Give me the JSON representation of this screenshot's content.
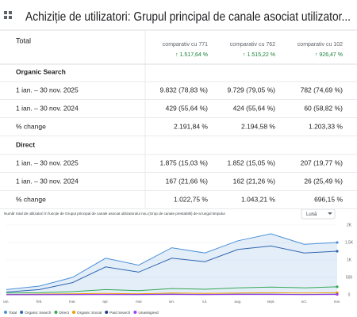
{
  "header": {
    "title": "Achiziție de utilizatori: Grupul principal de canale asociat utilizator..."
  },
  "table": {
    "header_label": "Total",
    "columns": [
      {
        "label": "comparativ cu 771",
        "change": "↑ 1.517,64 %"
      },
      {
        "label": "comparativ cu 762",
        "change": "↑ 1.515,22 %"
      },
      {
        "label": "comparativ cu 102",
        "change": "↑ 926,47 %"
      }
    ],
    "sections": [
      {
        "name": "Organic Search",
        "rows": [
          {
            "label": "1 ian. – 30 nov. 2025",
            "cells": [
              "9.832 (78,83 %)",
              "9.729 (79,05 %)",
              "782 (74,69 %)"
            ]
          },
          {
            "label": "1 ian. – 30 nov. 2024",
            "cells": [
              "429 (55,64 %)",
              "424 (55,64 %)",
              "60 (58,82 %)"
            ]
          },
          {
            "label": "% change",
            "cells": [
              "2.191,84 %",
              "2.194,58 %",
              "1.203,33 %"
            ]
          }
        ]
      },
      {
        "name": "Direct",
        "rows": [
          {
            "label": "1 ian. – 30 nov. 2025",
            "cells": [
              "1.875 (15,03 %)",
              "1.852 (15,05 %)",
              "207 (19,77 %)"
            ]
          },
          {
            "label": "1 ian. – 30 nov. 2024",
            "cells": [
              "167 (21,66 %)",
              "162 (21,26 %)",
              "26 (25,49 %)"
            ]
          },
          {
            "label": "% change",
            "cells": [
              "1.022,75 %",
              "1.043,21 %",
              "696,15 %"
            ]
          }
        ]
      }
    ]
  },
  "chart_data": {
    "type": "line",
    "title": "Număr total de utilizatori în funcție de Grupul principal de canale asociat utilizatorului nou (Grup de canale prestabilit) de-a lungul timpului",
    "granularity": "Lună",
    "categories": [
      "ian.",
      "feb.",
      "mar.",
      "apr.",
      "mai",
      "iun.",
      "iul.",
      "aug.",
      "sept.",
      "oct.",
      "nov."
    ],
    "ylim": [
      0,
      2000
    ],
    "yticks": [
      0,
      500,
      {
        "value": 1000,
        "label": "1K"
      },
      {
        "value": 1500,
        "label": "1,5K"
      },
      {
        "value": 2000,
        "label": "2K"
      }
    ],
    "grid": true,
    "series": [
      {
        "name": "Total",
        "color": "#4a90d9",
        "area": true,
        "values": [
          150,
          250,
          500,
          1050,
          850,
          1350,
          1200,
          1550,
          1750,
          1450,
          1500
        ]
      },
      {
        "name": "Organic Search",
        "color": "#2e66b0",
        "values": [
          80,
          150,
          350,
          800,
          650,
          1050,
          950,
          1300,
          1400,
          1200,
          1250
        ]
      },
      {
        "name": "Direct",
        "color": "#34a853",
        "values": [
          50,
          60,
          90,
          150,
          120,
          180,
          160,
          200,
          220,
          200,
          230
        ]
      },
      {
        "name": "Organic Social",
        "color": "#f29900",
        "values": [
          10,
          20,
          30,
          40,
          30,
          50,
          40,
          50,
          60,
          50,
          60
        ]
      },
      {
        "name": "Paid Search",
        "color": "#1e3a8a",
        "values": [
          5,
          5,
          10,
          10,
          10,
          15,
          10,
          15,
          15,
          10,
          15
        ]
      },
      {
        "name": "Unassigned",
        "color": "#a142f4",
        "values": [
          3,
          5,
          5,
          10,
          5,
          10,
          5,
          10,
          10,
          5,
          10
        ]
      }
    ]
  }
}
